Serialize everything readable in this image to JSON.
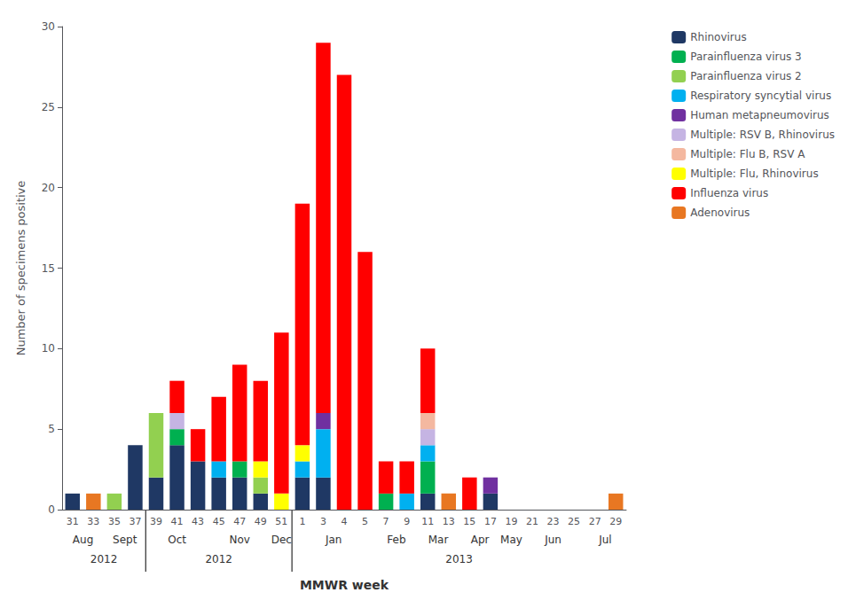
{
  "chart_data": {
    "type": "bar",
    "stacked": true,
    "grid": false,
    "legend": "upper right",
    "ylabel": "Number of specimens positive",
    "xlabel": "MMWR week",
    "categories": [
      "31",
      "33",
      "35",
      "37",
      "39",
      "41",
      "43",
      "45",
      "47",
      "49",
      "51",
      "1",
      "3",
      "4",
      "5",
      "7",
      "9",
      "11",
      "13",
      "15",
      "17",
      "19",
      "21",
      "23",
      "25",
      "27",
      "29"
    ],
    "ylim": [
      0,
      30
    ],
    "yticks": [
      0,
      5,
      10,
      15,
      20,
      25,
      30
    ],
    "series": [
      {
        "name": "Rhinovirus",
        "color": "#1F3864",
        "values": [
          1,
          0,
          0,
          4,
          2,
          4,
          3,
          2,
          2,
          1,
          0,
          2,
          2,
          0,
          0,
          0,
          0,
          1,
          0,
          0,
          1,
          0,
          0,
          0,
          0,
          0,
          0
        ]
      },
      {
        "name": "Parainfluenza virus 3",
        "color": "#00B050",
        "values": [
          0,
          0,
          0,
          0,
          0,
          1,
          0,
          0,
          1,
          0,
          0,
          0,
          0,
          0,
          0,
          1,
          0,
          2,
          0,
          0,
          0,
          0,
          0,
          0,
          0,
          0,
          0
        ]
      },
      {
        "name": "Parainfluenza virus 2",
        "color": "#92D050",
        "values": [
          0,
          0,
          1,
          0,
          4,
          0,
          0,
          0,
          0,
          1,
          0,
          0,
          0,
          0,
          0,
          0,
          0,
          0,
          0,
          0,
          0,
          0,
          0,
          0,
          0,
          0,
          0
        ]
      },
      {
        "name": "Respiratory syncytial virus",
        "color": "#00B0F0",
        "values": [
          0,
          0,
          0,
          0,
          0,
          0,
          0,
          1,
          0,
          0,
          0,
          1,
          3,
          0,
          0,
          0,
          1,
          1,
          0,
          0,
          0,
          0,
          0,
          0,
          0,
          0,
          0
        ]
      },
      {
        "name": "Human metapneumovirus",
        "color": "#7030A0",
        "values": [
          0,
          0,
          0,
          0,
          0,
          0,
          0,
          0,
          0,
          0,
          0,
          0,
          1,
          0,
          0,
          0,
          0,
          0,
          0,
          0,
          1,
          0,
          0,
          0,
          0,
          0,
          0
        ]
      },
      {
        "name": "Multiple: RSV B, Rhinovirus",
        "color": "#C5B4E3",
        "values": [
          0,
          0,
          0,
          0,
          0,
          1,
          0,
          0,
          0,
          0,
          0,
          0,
          0,
          0,
          0,
          0,
          0,
          1,
          0,
          0,
          0,
          0,
          0,
          0,
          0,
          0,
          0
        ]
      },
      {
        "name": "Multiple: Flu B, RSV A",
        "color": "#F4B8A0",
        "values": [
          0,
          0,
          0,
          0,
          0,
          0,
          0,
          0,
          0,
          0,
          0,
          0,
          0,
          0,
          0,
          0,
          0,
          1,
          0,
          0,
          0,
          0,
          0,
          0,
          0,
          0,
          0
        ]
      },
      {
        "name": "Multiple: Flu, Rhinovirus",
        "color": "#FFFF00",
        "values": [
          0,
          0,
          0,
          0,
          0,
          0,
          0,
          0,
          0,
          1,
          1,
          1,
          0,
          0,
          0,
          0,
          0,
          0,
          0,
          0,
          0,
          0,
          0,
          0,
          0,
          0,
          0
        ]
      },
      {
        "name": "Influenza virus",
        "color": "#FF0000",
        "values": [
          0,
          0,
          0,
          0,
          0,
          2,
          2,
          4,
          6,
          5,
          10,
          15,
          23,
          27,
          16,
          2,
          2,
          4,
          0,
          2,
          0,
          0,
          0,
          0,
          0,
          0,
          0
        ]
      },
      {
        "name": "Adenovirus",
        "color": "#E87722",
        "values": [
          0,
          1,
          0,
          0,
          0,
          0,
          0,
          0,
          0,
          0,
          0,
          0,
          0,
          0,
          0,
          0,
          0,
          0,
          1,
          0,
          0,
          0,
          0,
          0,
          0,
          0,
          1
        ]
      }
    ],
    "month_groups": [
      {
        "label": "Aug",
        "categories": [
          "31",
          "33"
        ]
      },
      {
        "label": "Sept",
        "categories": [
          "35",
          "37"
        ]
      },
      {
        "label": "Oct",
        "categories": [
          "39",
          "41",
          "43"
        ]
      },
      {
        "label": "Nov",
        "categories": [
          "45",
          "47",
          "49"
        ]
      },
      {
        "label": "Dec",
        "categories": [
          "51"
        ]
      },
      {
        "label": "Jan",
        "categories": [
          "1",
          "3",
          "4",
          "5"
        ]
      },
      {
        "label": "Feb",
        "categories": [
          "7",
          "9"
        ]
      },
      {
        "label": "Mar",
        "categories": [
          "11",
          "13"
        ]
      },
      {
        "label": "Apr",
        "categories": [
          "15",
          "17"
        ]
      },
      {
        "label": "May",
        "categories": [
          "19"
        ]
      },
      {
        "label": "Jun",
        "categories": [
          "21",
          "23",
          "25"
        ]
      },
      {
        "label": "Jul",
        "categories": [
          "27",
          "29"
        ]
      }
    ],
    "year_groups": [
      {
        "label": "2012",
        "categories": [
          "31",
          "33",
          "35",
          "37"
        ]
      },
      {
        "label": "2012",
        "categories": [
          "39",
          "41",
          "43",
          "45",
          "47",
          "49",
          "51"
        ]
      },
      {
        "label": "2013",
        "categories": [
          "1",
          "3",
          "4",
          "5",
          "7",
          "9",
          "11",
          "13",
          "15",
          "17",
          "19",
          "21",
          "23",
          "25",
          "27",
          "29"
        ]
      }
    ]
  }
}
